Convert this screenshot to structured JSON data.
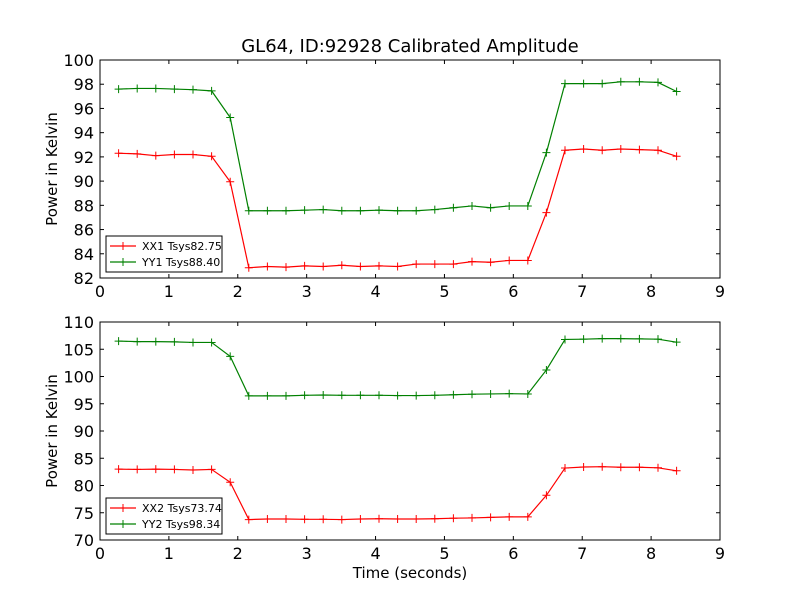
{
  "figure": {
    "title": "GL64, ID:92928 Calibrated Amplitude"
  },
  "chart_data": [
    {
      "type": "line",
      "title": "GL64, ID:92928 Calibrated Amplitude",
      "xlabel": "",
      "ylabel": "Power in Kelvin",
      "xlim": [
        0,
        9
      ],
      "ylim": [
        82,
        100
      ],
      "xticks": [
        0,
        1,
        2,
        3,
        4,
        5,
        6,
        7,
        8,
        9
      ],
      "yticks": [
        82,
        84,
        86,
        88,
        90,
        92,
        94,
        96,
        98,
        100
      ],
      "grid": false,
      "legend_position": "lower-left",
      "x": [
        0.27,
        0.54,
        0.81,
        1.08,
        1.35,
        1.62,
        1.89,
        2.16,
        2.43,
        2.7,
        2.97,
        3.24,
        3.51,
        3.78,
        4.05,
        4.32,
        4.59,
        4.86,
        5.13,
        5.4,
        5.67,
        5.94,
        6.21,
        6.48,
        6.75,
        7.02,
        7.29,
        7.56,
        7.83,
        8.1,
        8.37
      ],
      "series": [
        {
          "name": "XX1 Tsys82.75",
          "color": "#ff0000",
          "values": [
            92.3,
            92.25,
            92.1,
            92.2,
            92.2,
            92.05,
            89.95,
            82.85,
            82.95,
            82.9,
            83.0,
            82.95,
            83.05,
            82.95,
            83.0,
            82.95,
            83.15,
            83.15,
            83.15,
            83.35,
            83.3,
            83.45,
            83.45,
            87.4,
            92.55,
            92.65,
            92.55,
            92.65,
            92.6,
            92.55,
            92.05
          ]
        },
        {
          "name": "YY1 Tsys88.40",
          "color": "#008000",
          "values": [
            97.6,
            97.65,
            97.65,
            97.6,
            97.55,
            97.45,
            95.25,
            87.55,
            87.55,
            87.55,
            87.6,
            87.65,
            87.55,
            87.55,
            87.6,
            87.55,
            87.55,
            87.65,
            87.8,
            87.95,
            87.8,
            87.95,
            87.95,
            92.35,
            98.05,
            98.05,
            98.05,
            98.2,
            98.2,
            98.15,
            97.4
          ]
        }
      ]
    },
    {
      "type": "line",
      "title": "",
      "xlabel": "Time (seconds)",
      "ylabel": "Power in Kelvin",
      "xlim": [
        0,
        9
      ],
      "ylim": [
        70,
        110
      ],
      "xticks": [
        0,
        1,
        2,
        3,
        4,
        5,
        6,
        7,
        8,
        9
      ],
      "yticks": [
        70,
        75,
        80,
        85,
        90,
        95,
        100,
        105,
        110
      ],
      "grid": false,
      "legend_position": "lower-left",
      "x": [
        0.27,
        0.54,
        0.81,
        1.08,
        1.35,
        1.62,
        1.89,
        2.16,
        2.43,
        2.7,
        2.97,
        3.24,
        3.51,
        3.78,
        4.05,
        4.32,
        4.59,
        4.86,
        5.13,
        5.4,
        5.67,
        5.94,
        6.21,
        6.48,
        6.75,
        7.02,
        7.29,
        7.56,
        7.83,
        8.1,
        8.37
      ],
      "series": [
        {
          "name": "XX2 Tsys73.74",
          "color": "#ff0000",
          "values": [
            83.0,
            82.95,
            83.0,
            82.95,
            82.85,
            82.95,
            80.6,
            73.75,
            73.85,
            73.85,
            73.8,
            73.8,
            73.75,
            73.85,
            73.9,
            73.85,
            73.85,
            73.9,
            74.0,
            74.05,
            74.15,
            74.25,
            74.25,
            78.2,
            83.2,
            83.4,
            83.45,
            83.35,
            83.35,
            83.25,
            82.7
          ]
        },
        {
          "name": "YY2 Tsys98.34",
          "color": "#008000",
          "values": [
            106.5,
            106.4,
            106.4,
            106.35,
            106.25,
            106.25,
            103.7,
            96.45,
            96.45,
            96.45,
            96.55,
            96.6,
            96.55,
            96.55,
            96.55,
            96.5,
            96.5,
            96.55,
            96.65,
            96.75,
            96.8,
            96.85,
            96.8,
            101.2,
            106.8,
            106.85,
            106.95,
            106.95,
            106.9,
            106.85,
            106.3
          ]
        }
      ]
    }
  ]
}
